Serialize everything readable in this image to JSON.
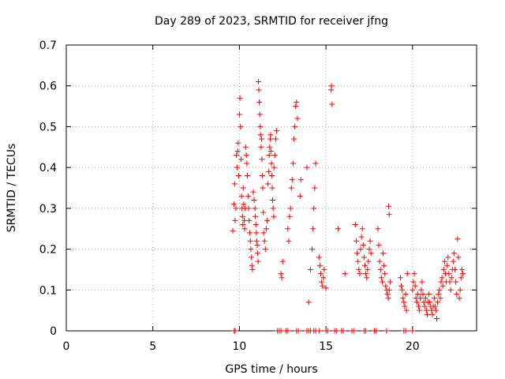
{
  "chart_data": {
    "type": "scatter",
    "title": "Day 289 of 2023, SRMTID for receiver jfng",
    "xlabel": "GPS time / hours",
    "ylabel": "SRMTID / TECUs",
    "xlim": [
      0,
      23.7
    ],
    "ylim": [
      0,
      0.7
    ],
    "xticks": [
      0,
      5,
      10,
      15,
      20
    ],
    "xtick_labels": [
      "0",
      "5",
      "10",
      "15",
      "20"
    ],
    "yticks": [
      0,
      0.1,
      0.2,
      0.3,
      0.4,
      0.5,
      0.6,
      0.7
    ],
    "ytick_labels": [
      "0",
      "0.1",
      "0.2",
      "0.3",
      "0.4",
      "0.5",
      "0.6",
      "0.7"
    ],
    "grid": true,
    "marker": "+",
    "colors": {
      "series": "#ff0000",
      "grid": "#a0a0a0",
      "axis": "#000000"
    },
    "series": [
      {
        "name": "SRMTID",
        "x": [
          9.62,
          9.68,
          9.72,
          9.75,
          9.8,
          9.83,
          9.87,
          9.9,
          9.93,
          9.96,
          10.0,
          10.03,
          10.06,
          10.1,
          10.12,
          10.15,
          10.18,
          10.2,
          10.22,
          10.25,
          10.28,
          10.3,
          10.33,
          10.36,
          10.4,
          10.43,
          10.46,
          10.5,
          10.53,
          10.56,
          10.6,
          10.63,
          10.66,
          10.7,
          10.72,
          10.75,
          10.8,
          10.85,
          10.9,
          10.92,
          10.95,
          10.98,
          11.0,
          11.03,
          11.05,
          11.08,
          11.1,
          11.12,
          11.15,
          11.18,
          11.2,
          11.22,
          11.25,
          11.28,
          11.3,
          11.32,
          11.35,
          11.38,
          11.4,
          11.45,
          11.5,
          11.55,
          11.6,
          11.65,
          11.7,
          11.72,
          11.75,
          11.78,
          11.8,
          11.82,
          11.85,
          11.88,
          11.9,
          11.92,
          11.95,
          11.98,
          12.0,
          12.05,
          12.1,
          12.15,
          12.4,
          12.45,
          12.5,
          12.8,
          12.85,
          12.9,
          12.95,
          13.0,
          13.05,
          13.1,
          13.15,
          13.2,
          13.25,
          13.3,
          13.35,
          13.5,
          13.55,
          13.9,
          14.0,
          14.1,
          14.2,
          14.25,
          14.3,
          14.35,
          14.4,
          14.6,
          14.65,
          14.7,
          14.75,
          14.8,
          14.85,
          14.9,
          15.0,
          15.3,
          15.32,
          15.35,
          15.7,
          16.1,
          16.7,
          16.75,
          16.8,
          16.85,
          16.9,
          16.95,
          17.0,
          17.05,
          17.1,
          17.15,
          17.2,
          17.25,
          17.3,
          17.35,
          17.4,
          17.45,
          17.5,
          17.55,
          17.6,
          18.0,
          18.05,
          18.1,
          18.15,
          18.2,
          18.25,
          18.3,
          18.35,
          18.4,
          18.45,
          18.5,
          18.55,
          18.6,
          18.65,
          18.7,
          18.62,
          18.65,
          19.3,
          19.35,
          19.4,
          19.45,
          19.5,
          19.55,
          19.6,
          19.65,
          19.7,
          20.0,
          20.05,
          20.1,
          20.15,
          20.2,
          20.25,
          20.3,
          20.35,
          20.4,
          20.45,
          20.5,
          20.55,
          20.6,
          20.65,
          20.7,
          20.75,
          20.8,
          20.85,
          20.9,
          20.95,
          21.0,
          21.05,
          21.1,
          21.15,
          21.2,
          21.25,
          21.3,
          21.35,
          21.4,
          21.45,
          21.5,
          21.55,
          21.6,
          21.65,
          21.7,
          21.75,
          21.8,
          21.85,
          21.9,
          21.95,
          22.0,
          22.05,
          22.1,
          22.15,
          22.2,
          22.25,
          22.3,
          22.35,
          22.4,
          22.45,
          22.5,
          22.55,
          22.6,
          22.65,
          22.7,
          22.75,
          22.8,
          22.85,
          22.9,
          9.7,
          9.75,
          12.2,
          12.3,
          12.4,
          12.7,
          12.8,
          13.3,
          13.4,
          13.9,
          14.0,
          14.1,
          14.3,
          14.4,
          14.6,
          15.0,
          15.1,
          15.5,
          15.6,
          15.9,
          16.0,
          16.5,
          16.6,
          17.2,
          17.3,
          17.8,
          17.9,
          18.5,
          19.5,
          19.6,
          20.0
        ],
        "y": [
          0.245,
          0.31,
          0.36,
          0.27,
          0.3,
          0.43,
          0.4,
          0.44,
          0.46,
          0.38,
          0.53,
          0.57,
          0.5,
          0.42,
          0.33,
          0.3,
          0.28,
          0.26,
          0.35,
          0.31,
          0.27,
          0.25,
          0.3,
          0.45,
          0.43,
          0.41,
          0.38,
          0.33,
          0.3,
          0.27,
          0.24,
          0.22,
          0.2,
          0.18,
          0.16,
          0.15,
          0.34,
          0.32,
          0.3,
          0.28,
          0.26,
          0.24,
          0.22,
          0.21,
          0.19,
          0.17,
          0.61,
          0.59,
          0.56,
          0.53,
          0.5,
          0.48,
          0.45,
          0.47,
          0.42,
          0.38,
          0.35,
          0.29,
          0.24,
          0.22,
          0.2,
          0.25,
          0.27,
          0.36,
          0.39,
          0.43,
          0.45,
          0.47,
          0.48,
          0.44,
          0.41,
          0.38,
          0.35,
          0.32,
          0.3,
          0.28,
          0.4,
          0.43,
          0.47,
          0.49,
          0.14,
          0.13,
          0.17,
          0.25,
          0.22,
          0.28,
          0.3,
          0.35,
          0.37,
          0.41,
          0.47,
          0.5,
          0.55,
          0.56,
          0.52,
          0.33,
          0.37,
          0.4,
          0.07,
          0.15,
          0.2,
          0.25,
          0.3,
          0.35,
          0.41,
          0.18,
          0.16,
          0.14,
          0.12,
          0.11,
          0.13,
          0.15,
          0.105,
          0.59,
          0.6,
          0.555,
          0.25,
          0.14,
          0.26,
          0.22,
          0.19,
          0.17,
          0.15,
          0.14,
          0.2,
          0.23,
          0.25,
          0.21,
          0.18,
          0.16,
          0.14,
          0.13,
          0.15,
          0.17,
          0.2,
          0.22,
          0.19,
          0.25,
          0.21,
          0.17,
          0.15,
          0.13,
          0.12,
          0.19,
          0.16,
          0.14,
          0.11,
          0.1,
          0.09,
          0.08,
          0.1,
          0.12,
          0.305,
          0.285,
          0.13,
          0.11,
          0.1,
          0.08,
          0.07,
          0.06,
          0.09,
          0.05,
          0.14,
          0.1,
          0.12,
          0.14,
          0.11,
          0.08,
          0.07,
          0.09,
          0.06,
          0.05,
          0.08,
          0.1,
          0.12,
          0.09,
          0.07,
          0.06,
          0.08,
          0.05,
          0.04,
          0.07,
          0.09,
          0.07,
          0.06,
          0.05,
          0.04,
          0.06,
          0.08,
          0.06,
          0.05,
          0.03,
          0.07,
          0.09,
          0.1,
          0.08,
          0.12,
          0.13,
          0.11,
          0.15,
          0.17,
          0.14,
          0.12,
          0.16,
          0.18,
          0.14,
          0.12,
          0.1,
          0.13,
          0.15,
          0.17,
          0.19,
          0.15,
          0.12,
          0.09,
          0.225,
          0.18,
          0.08,
          0.1,
          0.13,
          0.15,
          0.14,
          0,
          0,
          0,
          0,
          0,
          0,
          0,
          0,
          0,
          0,
          0,
          0,
          0,
          0,
          0,
          0,
          0,
          0,
          0,
          0,
          0,
          0,
          0,
          0,
          0,
          0,
          0,
          0,
          0,
          0,
          0
        ]
      }
    ]
  }
}
